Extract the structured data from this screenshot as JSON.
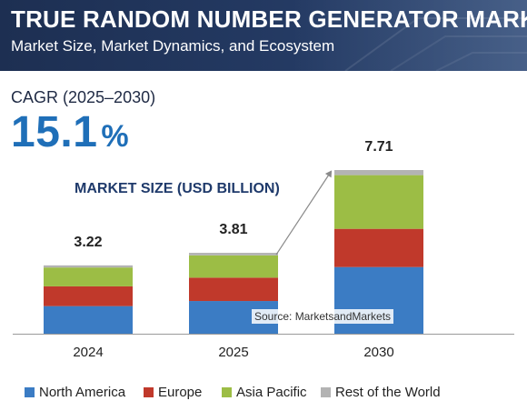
{
  "header": {
    "title": "TRUE RANDOM NUMBER GENERATOR MARKET",
    "subtitle": "Market Size, Market Dynamics, and Ecosystem"
  },
  "cagr": {
    "label": "CAGR (2025–2030)",
    "value": "15.1",
    "unit": "%"
  },
  "source": "Source: MarketsandMarkets",
  "colors": {
    "header_bg": "#243a63",
    "accent": "#1f6fb8",
    "north_america": "#3b7cc4",
    "europe": "#c0392b",
    "asia_pacific": "#9cbd45",
    "rest_of_world": "#b3b3b3"
  },
  "chart_data": {
    "type": "bar",
    "stacked": true,
    "title": "MARKET SIZE (USD BILLION)",
    "categories": [
      "2024",
      "2025",
      "2030"
    ],
    "totals": [
      "3.22",
      "3.81",
      "7.71"
    ],
    "series": [
      {
        "name": "North America",
        "color": "#3b7cc4",
        "values": [
          1.3,
          1.54,
          3.14
        ]
      },
      {
        "name": "Europe",
        "color": "#c0392b",
        "values": [
          0.93,
          1.1,
          1.8
        ]
      },
      {
        "name": "Asia Pacific",
        "color": "#9cbd45",
        "values": [
          0.89,
          1.05,
          2.53
        ]
      },
      {
        "name": "Rest of the World",
        "color": "#b3b3b3",
        "values": [
          0.1,
          0.12,
          0.24
        ]
      }
    ],
    "ylim": [
      0,
      7.71
    ],
    "grid": false,
    "legend_position": "bottom",
    "annotation": "arrow from 2025 bar to 2030 bar"
  }
}
